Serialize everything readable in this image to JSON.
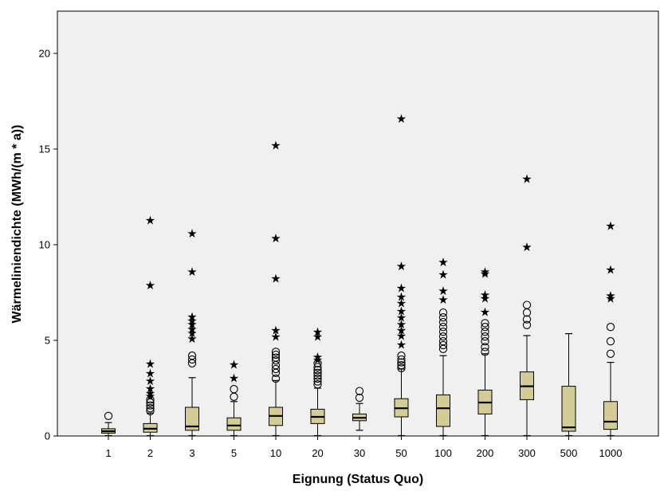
{
  "chart_data": {
    "type": "boxplot",
    "xlabel": "Eignung (Status Quo)",
    "ylabel": "Wärmeliniendichte (MWh/(m * a))",
    "ylim": [
      0,
      22.2
    ],
    "yticks": [
      0,
      5,
      10,
      15,
      20
    ],
    "grid": false,
    "colors": {
      "plot_background": "#f0f0f0",
      "box_fill": "#d4cc96",
      "stroke": "#000000"
    },
    "categories": [
      "1",
      "2",
      "3",
      "5",
      "10",
      "20",
      "30",
      "50",
      "100",
      "200",
      "300",
      "500",
      "1000"
    ],
    "boxes": [
      {
        "category": "1",
        "lower_whisker": 0.02,
        "q1": 0.15,
        "median": 0.25,
        "q3": 0.38,
        "upper_whisker": 0.7,
        "outliers": [
          1.05
        ],
        "extremes": []
      },
      {
        "category": "2",
        "lower_whisker": 0.02,
        "q1": 0.2,
        "median": 0.38,
        "q3": 0.65,
        "upper_whisker": 1.2,
        "outliers": [
          1.3,
          1.45,
          1.6,
          1.75,
          1.9
        ],
        "extremes": [
          2.1,
          2.25,
          2.5,
          2.9,
          3.3,
          3.8,
          7.9,
          11.3
        ]
      },
      {
        "category": "3",
        "lower_whisker": 0.02,
        "q1": 0.3,
        "median": 0.5,
        "q3": 1.5,
        "upper_whisker": 3.05,
        "outliers": [
          3.8,
          4.0,
          4.2
        ],
        "extremes": [
          5.1,
          5.4,
          5.6,
          5.85,
          6.05,
          6.25,
          8.6,
          10.6
        ]
      },
      {
        "category": "5",
        "lower_whisker": 0.02,
        "q1": 0.3,
        "median": 0.55,
        "q3": 0.95,
        "upper_whisker": 1.8,
        "outliers": [
          2.05,
          2.45
        ],
        "extremes": [
          3.05,
          3.75
        ]
      },
      {
        "category": "10",
        "lower_whisker": 0.02,
        "q1": 0.55,
        "median": 1.05,
        "q3": 1.5,
        "upper_whisker": 2.9,
        "outliers": [
          3.0,
          3.3,
          3.5,
          3.7,
          3.95,
          4.1,
          4.25,
          4.4
        ],
        "extremes": [
          5.2,
          5.55,
          8.25,
          10.35,
          15.2
        ]
      },
      {
        "category": "20",
        "lower_whisker": 0.02,
        "q1": 0.65,
        "median": 1.0,
        "q3": 1.4,
        "upper_whisker": 2.5,
        "outliers": [
          2.7,
          2.85,
          3.0,
          3.15,
          3.3,
          3.45,
          3.6,
          3.8
        ],
        "extremes": [
          4.0,
          4.15,
          5.2,
          5.45
        ]
      },
      {
        "category": "30",
        "lower_whisker": 0.3,
        "q1": 0.8,
        "median": 0.95,
        "q3": 1.15,
        "upper_whisker": 1.7,
        "outliers": [
          2.0,
          2.35
        ],
        "extremes": []
      },
      {
        "category": "50",
        "lower_whisker": 0.02,
        "q1": 1.0,
        "median": 1.45,
        "q3": 1.95,
        "upper_whisker": 3.5,
        "outliers": [
          3.55,
          3.7,
          3.85,
          4.0,
          4.2
        ],
        "extremes": [
          4.8,
          5.25,
          5.55,
          5.85,
          6.2,
          6.55,
          6.95,
          7.3,
          7.75,
          8.9,
          16.6
        ]
      },
      {
        "category": "100",
        "lower_whisker": 0.02,
        "q1": 0.5,
        "median": 1.45,
        "q3": 2.15,
        "upper_whisker": 4.2,
        "outliers": [
          4.55,
          4.75,
          4.95,
          5.2,
          5.45,
          5.7,
          5.95,
          6.2,
          6.45
        ],
        "extremes": [
          7.15,
          7.6,
          8.45,
          9.1
        ]
      },
      {
        "category": "200",
        "lower_whisker": 0.02,
        "q1": 1.15,
        "median": 1.75,
        "q3": 2.4,
        "upper_whisker": 4.3,
        "outliers": [
          4.4,
          4.65,
          4.95,
          5.2,
          5.45,
          5.7,
          5.9
        ],
        "extremes": [
          6.5,
          7.2,
          7.4,
          8.5,
          8.6
        ]
      },
      {
        "category": "300",
        "lower_whisker": 0.02,
        "q1": 1.9,
        "median": 2.6,
        "q3": 3.35,
        "upper_whisker": 5.25,
        "outliers": [
          5.8,
          6.1,
          6.45,
          6.85
        ],
        "extremes": [
          9.9,
          13.45
        ]
      },
      {
        "category": "500",
        "lower_whisker": 0.02,
        "q1": 0.25,
        "median": 0.45,
        "q3": 2.6,
        "upper_whisker": 5.35,
        "outliers": [],
        "extremes": []
      },
      {
        "category": "1000",
        "lower_whisker": 0.02,
        "q1": 0.35,
        "median": 0.75,
        "q3": 1.8,
        "upper_whisker": 3.85,
        "outliers": [
          4.3,
          4.95,
          5.7
        ],
        "extremes": [
          7.2,
          7.35,
          8.7,
          11.0
        ]
      }
    ]
  }
}
